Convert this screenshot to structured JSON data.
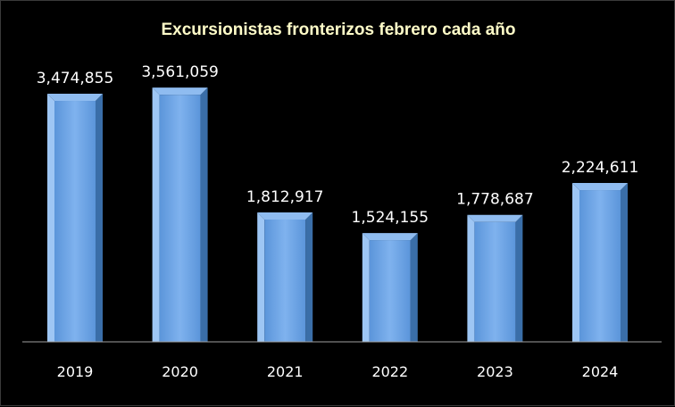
{
  "chart_data": {
    "type": "bar",
    "title": "Excursionistas fronterizos febrero cada año",
    "categories": [
      "2019",
      "2020",
      "2021",
      "2022",
      "2023",
      "2024"
    ],
    "values": [
      3474855,
      3561059,
      1812917,
      1524155,
      1778687,
      2224611
    ],
    "value_labels": [
      "3,474,855",
      "3,561,059",
      "1,812,917",
      "1,524,155",
      "1,778,687",
      "2,224,611"
    ],
    "xlabel": "",
    "ylabel": "",
    "ylim": [
      0,
      4000000
    ],
    "grid": false,
    "legend": "none",
    "bar_style": "3d-bevel"
  },
  "colors": {
    "background": "#000000",
    "bar_front": "#6aa3e6",
    "bar_front_light": "#8fbcf0",
    "bar_side_dark": "#3a6ea8",
    "bar_side_light": "#9ec6f4",
    "title": "#fffcc8",
    "label": "#ffffff",
    "axis": "#a0a0a0"
  }
}
